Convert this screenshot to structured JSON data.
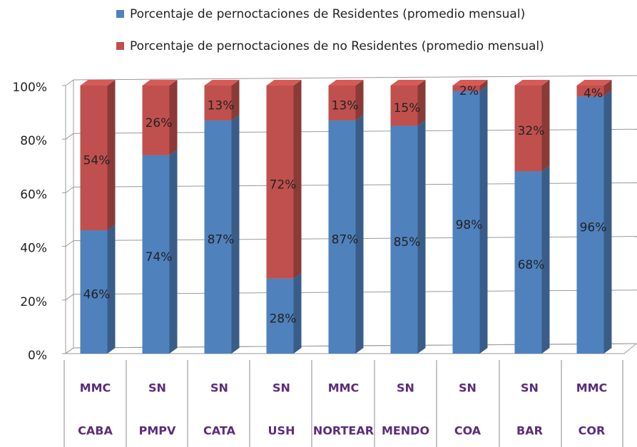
{
  "chart_data": {
    "type": "stacked-bar-3d",
    "categories": [
      "CABA",
      "PMPV",
      "CATA",
      "USH",
      "NORTEAR",
      "MENDO",
      "COA",
      "BAR",
      "COR"
    ],
    "category_groups": [
      "MMC",
      "SN",
      "SN",
      "SN",
      "MMC",
      "SN",
      "SN",
      "SN",
      "MMC"
    ],
    "series": [
      {
        "name": "Porcentaje de pernoctaciones de Residentes (promedio mensual)",
        "color": "#4f81bd",
        "values": [
          46,
          74,
          87,
          28,
          87,
          85,
          98,
          68,
          96
        ],
        "value_labels": [
          "46%",
          "74%",
          "87%",
          "28%",
          "87%",
          "85%",
          "98%",
          "68%",
          "96%"
        ]
      },
      {
        "name": "Porcentaje de pernoctaciones de no Residentes (promedio mensual)",
        "color": "#c0504d",
        "values": [
          54,
          26,
          13,
          72,
          13,
          15,
          2,
          32,
          4
        ],
        "value_labels": [
          "54%",
          "26%",
          "13%",
          "72%",
          "13%",
          "15%",
          "2%",
          "32%",
          "4%"
        ]
      }
    ],
    "ylim": [
      0,
      100
    ],
    "yticks": [
      {
        "value": 0,
        "label": "0%"
      },
      {
        "value": 20,
        "label": "20%"
      },
      {
        "value": 40,
        "label": "40%"
      },
      {
        "value": 60,
        "label": "60%"
      },
      {
        "value": 80,
        "label": "80%"
      },
      {
        "value": 100,
        "label": "100%"
      }
    ],
    "grid": true
  }
}
